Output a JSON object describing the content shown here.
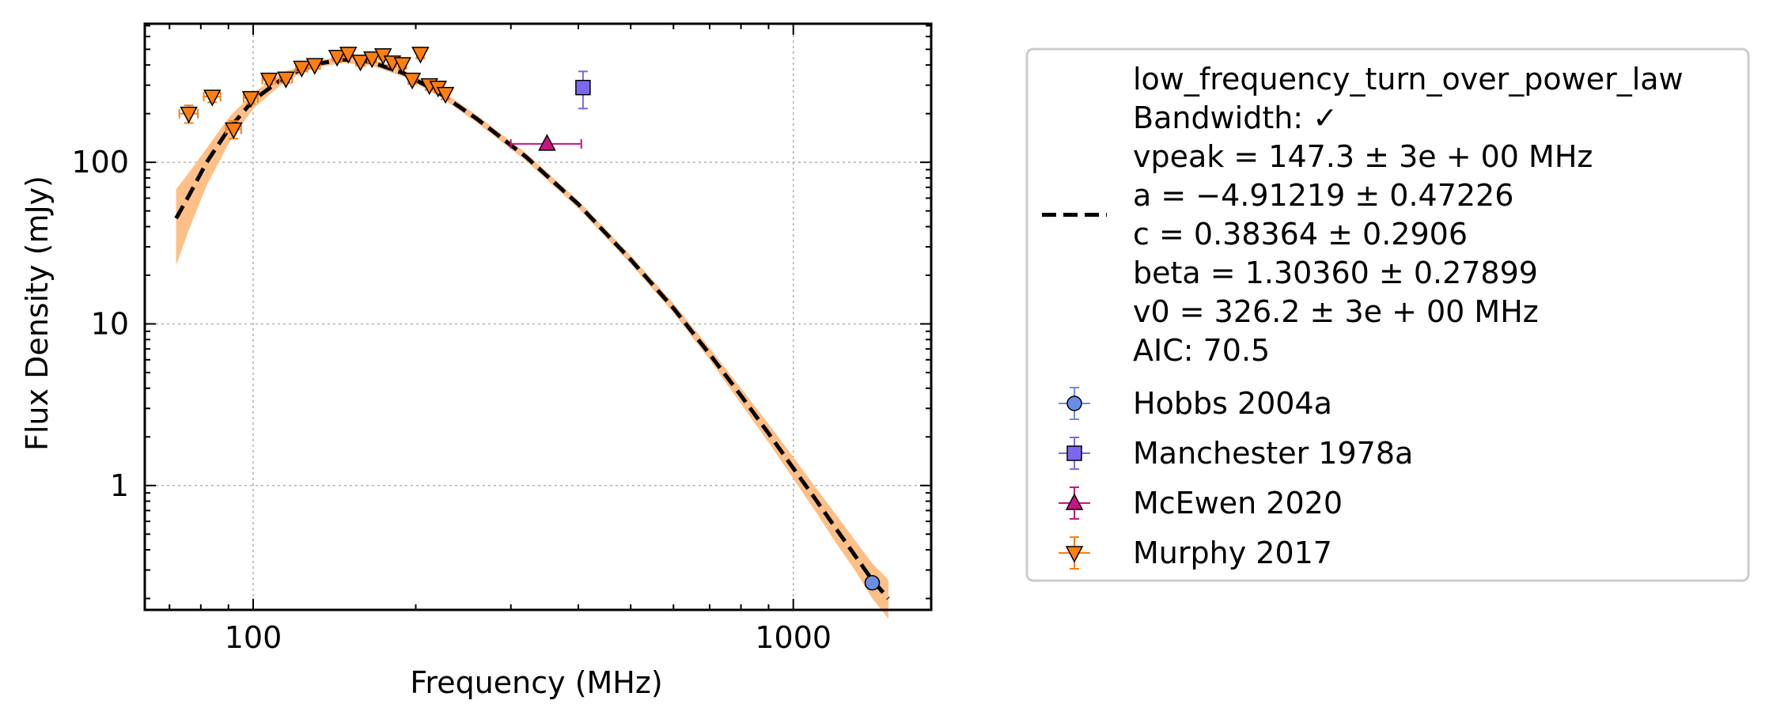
{
  "chart_data": {
    "type": "scatter",
    "title": "",
    "xlabel": "Frequency (MHz)",
    "ylabel": "Flux Density (mJy)",
    "xscale": "log",
    "yscale": "log",
    "xlim": [
      63,
      1800
    ],
    "ylim": [
      0.17,
      720
    ],
    "grid": true,
    "legend_position": "outside-right",
    "x_ticks": [
      {
        "value": 100,
        "label": "100"
      },
      {
        "value": 1000,
        "label": "1000"
      }
    ],
    "y_ticks": [
      {
        "value": 1,
        "label": "1"
      },
      {
        "value": 10,
        "label": "10"
      },
      {
        "value": 100,
        "label": "100"
      }
    ],
    "fit": {
      "model": "low_frequency_turn_over_power_law",
      "legend_lines": [
        "low_frequency_turn_over_power_law",
        "Bandwidth: ✓",
        "vpeak = 147.3 ± 3e + 00 MHz",
        "a = −4.91219 ± 0.47226",
        "c = 0.38364 ± 0.2906",
        "beta = 1.30360 ± 0.27899",
        "v0 = 326.2 ± 3e + 00 MHz",
        "AIC: 70.5"
      ],
      "line_color": "#000000",
      "band_color": "#ffbf86",
      "curve": [
        {
          "x": 72,
          "y": 45,
          "lo": 23,
          "hi": 68
        },
        {
          "x": 76,
          "y": 62,
          "lo": 38,
          "hi": 86
        },
        {
          "x": 82,
          "y": 100,
          "lo": 72,
          "hi": 122
        },
        {
          "x": 90,
          "y": 160,
          "lo": 130,
          "hi": 188
        },
        {
          "x": 100,
          "y": 242,
          "lo": 215,
          "hi": 270
        },
        {
          "x": 115,
          "y": 342,
          "lo": 320,
          "hi": 365
        },
        {
          "x": 130,
          "y": 405,
          "lo": 385,
          "hi": 425
        },
        {
          "x": 147,
          "y": 432,
          "lo": 412,
          "hi": 452
        },
        {
          "x": 165,
          "y": 418,
          "lo": 398,
          "hi": 438
        },
        {
          "x": 190,
          "y": 355,
          "lo": 338,
          "hi": 372
        },
        {
          "x": 220,
          "y": 272,
          "lo": 259,
          "hi": 286
        },
        {
          "x": 260,
          "y": 185,
          "lo": 175,
          "hi": 195
        },
        {
          "x": 320,
          "y": 108,
          "lo": 102,
          "hi": 114
        },
        {
          "x": 400,
          "y": 55,
          "lo": 52,
          "hi": 58
        },
        {
          "x": 500,
          "y": 25,
          "lo": 23.5,
          "hi": 26.5
        },
        {
          "x": 600,
          "y": 12.5,
          "lo": 11.7,
          "hi": 13.4
        },
        {
          "x": 700,
          "y": 6.5,
          "lo": 6.0,
          "hi": 7.1
        },
        {
          "x": 800,
          "y": 3.6,
          "lo": 3.2,
          "hi": 4.0
        },
        {
          "x": 900,
          "y": 2.1,
          "lo": 1.85,
          "hi": 2.4
        },
        {
          "x": 1000,
          "y": 1.28,
          "lo": 1.1,
          "hi": 1.5
        },
        {
          "x": 1100,
          "y": 0.82,
          "lo": 0.69,
          "hi": 0.97
        },
        {
          "x": 1200,
          "y": 0.54,
          "lo": 0.44,
          "hi": 0.66
        },
        {
          "x": 1300,
          "y": 0.37,
          "lo": 0.3,
          "hi": 0.46
        },
        {
          "x": 1400,
          "y": 0.26,
          "lo": 0.2,
          "hi": 0.33
        },
        {
          "x": 1500,
          "y": 0.2,
          "lo": 0.15,
          "hi": 0.26
        }
      ]
    },
    "series": [
      {
        "name": "Hobbs 2004a",
        "marker": "circle",
        "color": "#6a8de8",
        "points": [
          {
            "x": 1400,
            "y": 0.25,
            "xerr": 0,
            "yerr": 0
          }
        ]
      },
      {
        "name": "Manchester 1978a",
        "marker": "square",
        "color": "#7b68ee",
        "points": [
          {
            "x": 408,
            "y": 290,
            "xerr": 0,
            "yerr": 75
          }
        ]
      },
      {
        "name": "McEwen 2020",
        "marker": "triangle-up",
        "color": "#c71585",
        "points": [
          {
            "x": 350,
            "y": 130,
            "xerr_lo": 50,
            "xerr_hi": 55,
            "yerr": 0
          }
        ]
      },
      {
        "name": "Murphy 2017",
        "marker": "triangle-down",
        "color": "#ff7f0e",
        "points": [
          {
            "x": 76,
            "y": 200,
            "xerr": 3,
            "yerr": 25
          },
          {
            "x": 84,
            "y": 255,
            "xerr": 3,
            "yerr": 20
          },
          {
            "x": 92,
            "y": 160,
            "xerr": 3,
            "yerr": 20
          },
          {
            "x": 99,
            "y": 250,
            "xerr": 3,
            "yerr": 20
          },
          {
            "x": 107,
            "y": 325,
            "xerr": 3,
            "yerr": 20
          },
          {
            "x": 115,
            "y": 330,
            "xerr": 3,
            "yerr": 20
          },
          {
            "x": 123,
            "y": 385,
            "xerr": 3,
            "yerr": 20
          },
          {
            "x": 130,
            "y": 400,
            "xerr": 3,
            "yerr": 20
          },
          {
            "x": 143,
            "y": 450,
            "xerr": 3,
            "yerr": 25
          },
          {
            "x": 150,
            "y": 470,
            "xerr": 3,
            "yerr": 25
          },
          {
            "x": 158,
            "y": 420,
            "xerr": 3,
            "yerr": 25
          },
          {
            "x": 166,
            "y": 440,
            "xerr": 3,
            "yerr": 25
          },
          {
            "x": 174,
            "y": 460,
            "xerr": 3,
            "yerr": 25
          },
          {
            "x": 181,
            "y": 415,
            "xerr": 3,
            "yerr": 25
          },
          {
            "x": 189,
            "y": 405,
            "xerr": 3,
            "yerr": 25
          },
          {
            "x": 197,
            "y": 325,
            "xerr": 3,
            "yerr": 20
          },
          {
            "x": 204,
            "y": 470,
            "xerr": 3,
            "yerr": 30
          },
          {
            "x": 212,
            "y": 300,
            "xerr": 3,
            "yerr": 20
          },
          {
            "x": 220,
            "y": 290,
            "xerr": 3,
            "yerr": 20
          },
          {
            "x": 227,
            "y": 265,
            "xerr": 3,
            "yerr": 20
          }
        ]
      }
    ]
  }
}
